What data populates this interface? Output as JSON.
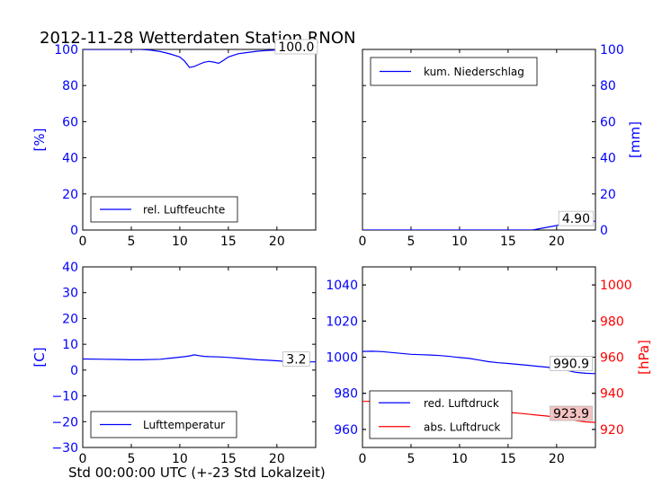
{
  "figure": {
    "title": "2012-11-28 Wetterdaten Station RNON",
    "bottom_label": "Std 00:00:00 UTC (+-23 Std Lokalzeit)"
  },
  "colors": {
    "blue": "#0000ff",
    "red": "#ff0000",
    "axis": "#000000",
    "badge_fill": "#f3c2c2"
  },
  "chart_data": [
    {
      "id": "humidity",
      "type": "line",
      "ylabel": "[%]",
      "ylabel_side": "left",
      "ylabel_color": "#0000ff",
      "xlim": [
        0,
        24
      ],
      "ylim": [
        0,
        100
      ],
      "xticks": [
        0,
        5,
        10,
        15,
        20
      ],
      "yticks": [
        0,
        20,
        40,
        60,
        80,
        100
      ],
      "ytick_side": "left",
      "ytick_color": "#0000ff",
      "legend": {
        "position": "lower-center"
      },
      "series": [
        {
          "name": "rel. Luftfeuchte",
          "color": "#0000ff",
          "x": [
            0,
            6,
            7,
            8,
            9,
            10,
            10.5,
            11,
            11.5,
            12,
            12.5,
            13,
            13.5,
            14,
            14.5,
            15,
            16,
            17,
            18,
            19,
            20,
            21,
            24
          ],
          "y": [
            100,
            100,
            99.6,
            98.8,
            97.5,
            95.8,
            93.5,
            90,
            90.6,
            91.8,
            92.9,
            93.4,
            93,
            92.3,
            94,
            95.8,
            97.6,
            98.3,
            99,
            99.4,
            99.7,
            99.9,
            100
          ]
        }
      ],
      "annotation": {
        "text": "100.0",
        "x": 22,
        "y": 100
      }
    },
    {
      "id": "precipitation",
      "type": "line",
      "ylabel": "[mm]",
      "ylabel_side": "right",
      "ylabel_color": "#0000ff",
      "xlim": [
        0,
        24
      ],
      "ylim": [
        0,
        100
      ],
      "xticks": [
        0,
        5,
        10,
        15,
        20
      ],
      "yticks": [
        0,
        20,
        40,
        60,
        80,
        100
      ],
      "ytick_side": "right",
      "ytick_color": "#0000ff",
      "legend": {
        "position": "upper-left"
      },
      "series": [
        {
          "name": "kum. Niederschlag",
          "color": "#0000ff",
          "x": [
            0,
            17.5,
            18.5,
            19.5,
            20.5,
            21.5,
            22.5,
            24
          ],
          "y": [
            0,
            0,
            1.0,
            2.0,
            3.0,
            4.2,
            4.8,
            4.9
          ]
        }
      ],
      "annotation": {
        "text": "4.90",
        "x": 22,
        "y": 4.9
      }
    },
    {
      "id": "temperature",
      "type": "line",
      "ylabel": "[C]",
      "ylabel_side": "left",
      "ylabel_color": "#0000ff",
      "xlim": [
        0,
        24
      ],
      "ylim": [
        -30,
        40
      ],
      "xticks": [
        0,
        5,
        10,
        15,
        20
      ],
      "yticks": [
        -30,
        -20,
        -10,
        0,
        10,
        20,
        30,
        40
      ],
      "ytick_side": "left",
      "ytick_color": "#0000ff",
      "legend": {
        "position": "lower-center"
      },
      "series": [
        {
          "name": "Lufttemperatur",
          "color": "#0000ff",
          "x": [
            0,
            2,
            4,
            5,
            6,
            8,
            9,
            10,
            10.5,
            11,
            11.5,
            12,
            12.5,
            13,
            14,
            15,
            16,
            17,
            18,
            19,
            20,
            21,
            22,
            24
          ],
          "y": [
            4.3,
            4.2,
            4.1,
            4.0,
            4.0,
            4.2,
            4.6,
            5.0,
            5.2,
            5.5,
            5.9,
            5.6,
            5.3,
            5.2,
            5.1,
            4.9,
            4.6,
            4.3,
            4.0,
            3.8,
            3.6,
            3.3,
            3.2,
            3.2
          ]
        }
      ],
      "annotation": {
        "text": "3.2",
        "x": 22,
        "y": 3.2
      }
    },
    {
      "id": "pressure",
      "type": "line",
      "left_axis": {
        "ylim": [
          950,
          1050
        ],
        "yticks": [
          960,
          980,
          1000,
          1020,
          1040
        ],
        "color": "#0000ff"
      },
      "right_axis": {
        "ylim": [
          910,
          1010
        ],
        "yticks": [
          920,
          940,
          960,
          980,
          1000
        ],
        "color": "#ff0000",
        "ylabel": "[hPa]"
      },
      "xlim": [
        0,
        24
      ],
      "xticks": [
        0,
        5,
        10,
        15,
        20
      ],
      "legend": {
        "position": "lower-left"
      },
      "series": [
        {
          "name": "red. Luftdruck",
          "color": "#0000ff",
          "axis": "left",
          "x": [
            0,
            1,
            2,
            3,
            4,
            5,
            6,
            7,
            8,
            9,
            10,
            11,
            12,
            13,
            14,
            15,
            16,
            17,
            18,
            19,
            20,
            21,
            22,
            23,
            24
          ],
          "y": [
            1003.2,
            1003.3,
            1003.1,
            1002.6,
            1002.1,
            1001.6,
            1001.4,
            1001.2,
            1000.9,
            1000.4,
            999.8,
            999.3,
            998.4,
            997.5,
            996.9,
            996.5,
            996.0,
            995.5,
            995.0,
            994.5,
            993.8,
            992.8,
            991.6,
            991.1,
            990.9
          ]
        },
        {
          "name": "abs. Luftdruck",
          "color": "#ff0000",
          "axis": "right",
          "x": [
            0,
            1,
            2,
            3,
            4,
            5,
            6,
            7,
            8,
            9,
            10,
            11,
            12,
            13,
            14,
            15,
            16,
            17,
            18,
            19,
            20,
            21,
            22,
            23,
            24
          ],
          "y": [
            935.5,
            935.5,
            935.3,
            934.9,
            934.4,
            934.0,
            933.7,
            933.4,
            933.1,
            932.7,
            932.2,
            931.8,
            931.1,
            930.3,
            929.8,
            929.4,
            929.0,
            928.5,
            927.9,
            927.4,
            926.7,
            925.9,
            924.9,
            924.2,
            923.9
          ]
        }
      ],
      "annotations": [
        {
          "text": "990.9",
          "x": 21.5,
          "y": 995,
          "axis": "left",
          "badge": false
        },
        {
          "text": "923.9",
          "x": 21.5,
          "y": 927.4,
          "axis": "right",
          "badge": true
        }
      ]
    }
  ]
}
